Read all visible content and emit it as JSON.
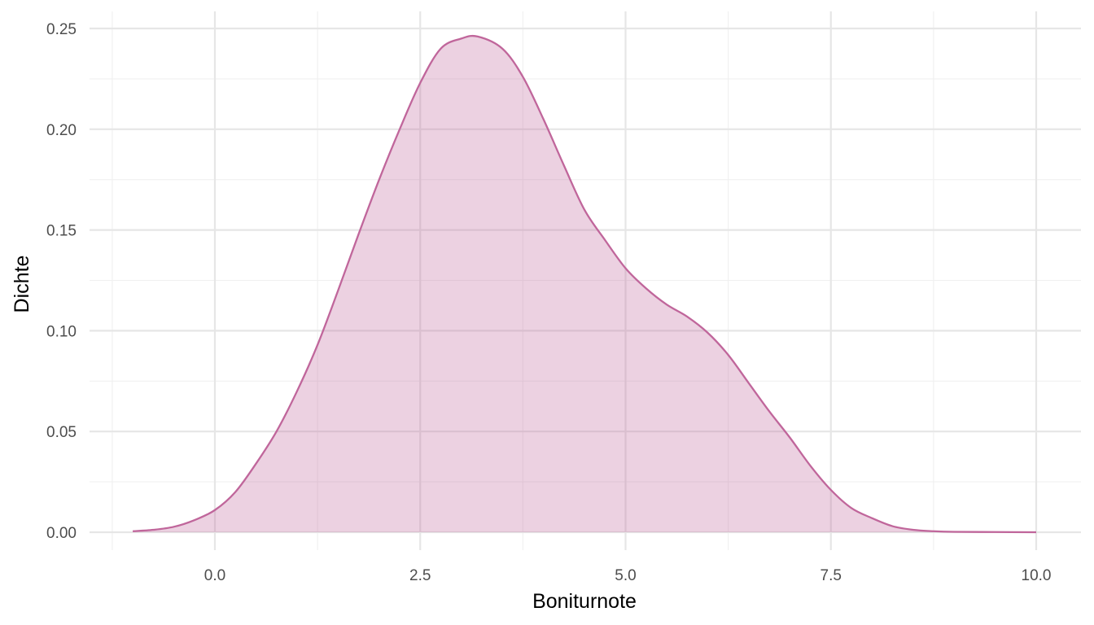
{
  "chart_data": {
    "type": "area",
    "title": "",
    "xlabel": "Boniturnote",
    "ylabel": "Dichte",
    "xlim": [
      -1.0,
      10.0
    ],
    "ylim": [
      0.0,
      0.25
    ],
    "x_ticks": [
      0.0,
      2.5,
      5.0,
      7.5,
      10.0
    ],
    "x_tick_labels": [
      "0.0",
      "2.5",
      "5.0",
      "7.5",
      "10.0"
    ],
    "y_ticks": [
      0.0,
      0.05,
      0.1,
      0.15,
      0.2,
      0.25
    ],
    "y_tick_labels": [
      "0.00",
      "0.05",
      "0.10",
      "0.15",
      "0.20",
      "0.25"
    ],
    "grid": true,
    "legend": "none",
    "colors": {
      "line": "#c0669b",
      "fill": "#c0669b",
      "fill_opacity": 0.3
    },
    "series": [
      {
        "x": [
          -1.0,
          -0.75,
          -0.5,
          -0.25,
          0.0,
          0.25,
          0.5,
          0.75,
          1.0,
          1.25,
          1.5,
          1.75,
          2.0,
          2.25,
          2.5,
          2.75,
          3.0,
          3.2,
          3.5,
          3.75,
          4.0,
          4.25,
          4.5,
          4.75,
          5.0,
          5.25,
          5.5,
          5.75,
          6.0,
          6.25,
          6.5,
          6.75,
          7.0,
          7.25,
          7.5,
          7.75,
          8.0,
          8.25,
          8.5,
          8.75,
          9.0,
          9.5,
          10.0
        ],
        "y": [
          0.0005,
          0.0012,
          0.0027,
          0.006,
          0.011,
          0.02,
          0.034,
          0.05,
          0.07,
          0.093,
          0.12,
          0.148,
          0.175,
          0.2,
          0.223,
          0.24,
          0.245,
          0.246,
          0.24,
          0.226,
          0.205,
          0.182,
          0.16,
          0.145,
          0.131,
          0.121,
          0.113,
          0.107,
          0.099,
          0.088,
          0.074,
          0.06,
          0.047,
          0.033,
          0.021,
          0.012,
          0.007,
          0.003,
          0.0012,
          0.0005,
          0.0002,
          0.0001,
          0.0
        ]
      }
    ]
  }
}
